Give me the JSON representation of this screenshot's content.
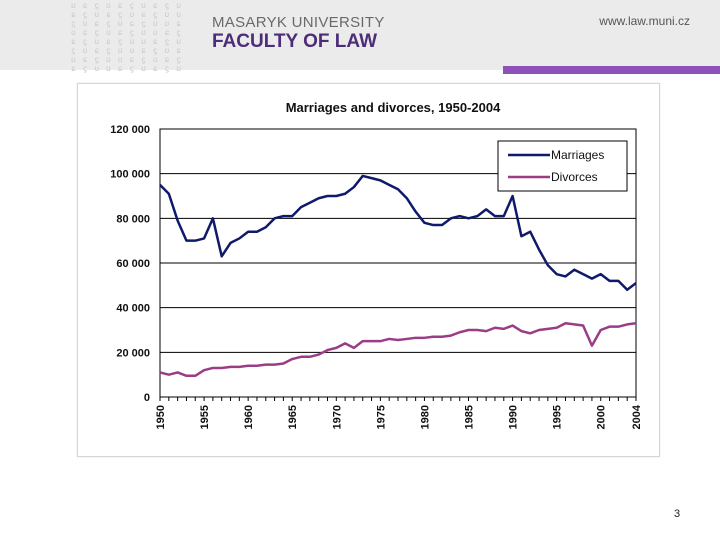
{
  "header": {
    "university": "MASARYK UNIVERSITY",
    "faculty": "FACULTY OF LAW",
    "website": "www.law.muni.cz",
    "pattern_glyphs": [
      "ʊ",
      "ɕ",
      "ϛ",
      "ʊ",
      "ɕ",
      "ϛ",
      "ʊ",
      "ɕ",
      "ϛ",
      "ʊ"
    ]
  },
  "page_number": "3",
  "colors": {
    "header_bg": "#ebebeb",
    "faculty_purple": "#4d2d79",
    "accent_purple": "#8c52b8",
    "marriages": "#101a6b",
    "divorces": "#9a3d86"
  },
  "chart_data": {
    "type": "line",
    "title": "Marriages and divorces, 1950-2004",
    "xlabel": "",
    "ylabel": "",
    "x": [
      1950,
      1951,
      1952,
      1953,
      1954,
      1955,
      1956,
      1957,
      1958,
      1959,
      1960,
      1961,
      1962,
      1963,
      1964,
      1965,
      1966,
      1967,
      1968,
      1969,
      1970,
      1971,
      1972,
      1973,
      1974,
      1975,
      1976,
      1977,
      1978,
      1979,
      1980,
      1981,
      1982,
      1983,
      1984,
      1985,
      1986,
      1987,
      1988,
      1989,
      1990,
      1991,
      1992,
      1993,
      1994,
      1995,
      1996,
      1997,
      1998,
      1999,
      2000,
      2001,
      2002,
      2003,
      2004
    ],
    "x_ticks": [
      1950,
      1955,
      1960,
      1965,
      1970,
      1975,
      1980,
      1985,
      1990,
      1995,
      2000,
      2004
    ],
    "ylim": [
      0,
      120000
    ],
    "y_ticks": [
      0,
      20000,
      40000,
      60000,
      80000,
      100000,
      120000
    ],
    "y_tick_labels": [
      "0",
      "20 000",
      "40 000",
      "60 000",
      "80 000",
      "100 000",
      "120 000"
    ],
    "grid": true,
    "legend_position": "top-right",
    "series": [
      {
        "name": "Marriages",
        "values": [
          95000,
          91000,
          79000,
          70000,
          70000,
          71000,
          80000,
          63000,
          69000,
          71000,
          74000,
          74000,
          76000,
          80000,
          81000,
          81000,
          85000,
          87000,
          89000,
          90000,
          90000,
          91000,
          94000,
          99000,
          98000,
          97000,
          95000,
          93000,
          89000,
          83000,
          78000,
          77000,
          77000,
          80000,
          81000,
          80000,
          81000,
          84000,
          81000,
          81000,
          90000,
          72000,
          74000,
          66000,
          59000,
          55000,
          54000,
          57000,
          55000,
          53000,
          55000,
          52000,
          52000,
          48000,
          51000
        ]
      },
      {
        "name": "Divorces",
        "values": [
          11000,
          10000,
          11000,
          9500,
          9500,
          12000,
          13000,
          13000,
          13500,
          13500,
          14000,
          14000,
          14500,
          14500,
          15000,
          17000,
          18000,
          18000,
          19000,
          21000,
          22000,
          24000,
          22000,
          25000,
          25000,
          25000,
          26000,
          25500,
          26000,
          26500,
          26500,
          27000,
          27000,
          27500,
          29000,
          30000,
          30000,
          29500,
          31000,
          30500,
          32000,
          29500,
          28500,
          30000,
          30500,
          31000,
          33000,
          32500,
          32000,
          23000,
          30000,
          31500,
          31500,
          32500,
          33000
        ]
      }
    ]
  }
}
